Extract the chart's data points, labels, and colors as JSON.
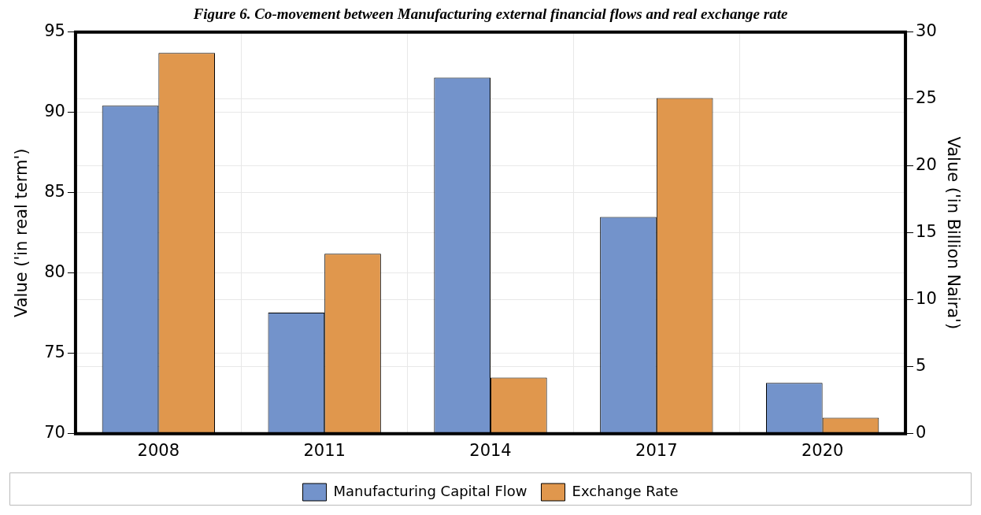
{
  "chart_data": {
    "type": "bar",
    "title": "Figure 6. Co-movement between Manufacturing external financial flows and real exchange rate",
    "categories": [
      "2008",
      "2011",
      "2014",
      "2017",
      "2020"
    ],
    "series": [
      {
        "name": "Manufacturing Capital Flow",
        "color": "#7393cb",
        "axis": "y2",
        "values": [
          24.5,
          9.05,
          26.6,
          16.2,
          3.8
        ]
      },
      {
        "name": "Exchange Rate",
        "color": "#e0974d",
        "values": [
          93.7,
          81.2,
          73.5,
          90.9,
          71.0
        ]
      }
    ],
    "ylabel": "Value ('in real term')",
    "y2label": "Value ('in Billion Naira')",
    "ylim": [
      70,
      95
    ],
    "yticks": [
      70,
      75,
      80,
      85,
      90,
      95
    ],
    "y2lim": [
      0,
      30
    ],
    "y2ticks": [
      0,
      5,
      10,
      15,
      20,
      25,
      30
    ],
    "grid": true,
    "legend": "bottom"
  }
}
